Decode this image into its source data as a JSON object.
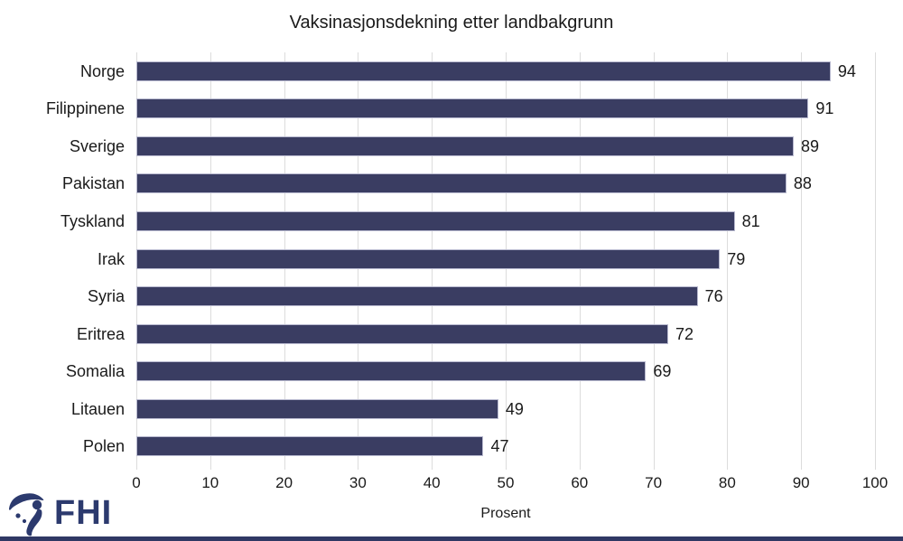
{
  "chart_data": {
    "type": "bar",
    "orientation": "horizontal",
    "title": "Vaksinasjonsdekning etter landbakgrunn",
    "categories": [
      "Norge",
      "Filippinene",
      "Sverige",
      "Pakistan",
      "Tyskland",
      "Irak",
      "Syria",
      "Eritrea",
      "Somalia",
      "Litauen",
      "Polen"
    ],
    "values": [
      94,
      91,
      89,
      88,
      81,
      79,
      76,
      72,
      69,
      49,
      47
    ],
    "xlabel": "Prosent",
    "xlim": [
      0,
      100
    ],
    "xticks": [
      0,
      10,
      20,
      30,
      40,
      50,
      60,
      70,
      80,
      90,
      100
    ],
    "grid": true,
    "legend": "none",
    "bar_color": "#3a3d62",
    "gridline_color": "#dcdcdc",
    "text_color": "#1a1a1a"
  },
  "footer": {
    "logo_text": "FHI"
  },
  "colors": {
    "logo_navy": "#2c3a6e",
    "bottom_strip": "#2f3864"
  }
}
